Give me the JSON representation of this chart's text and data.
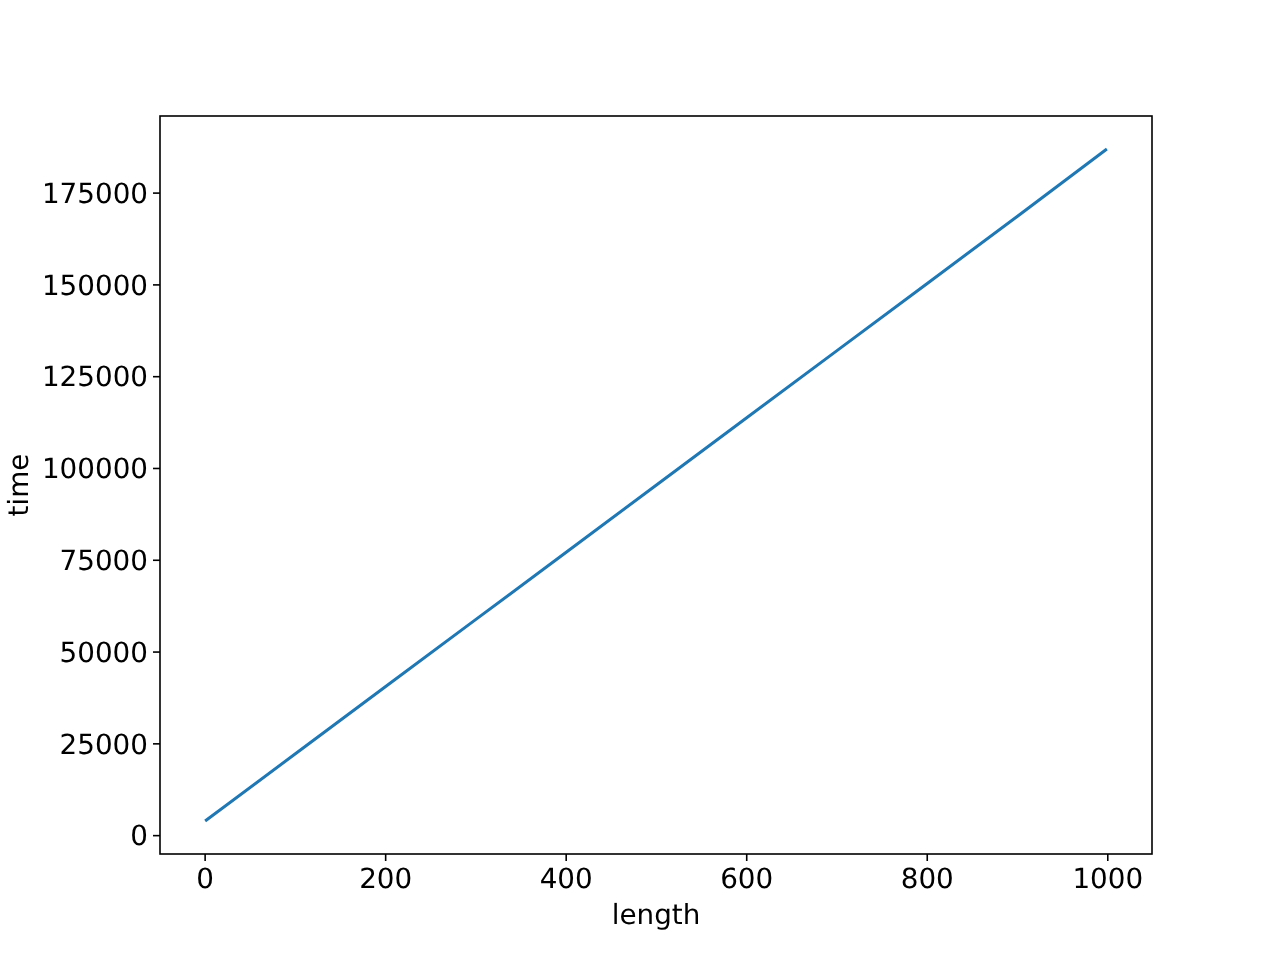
{
  "chart_data": {
    "type": "line",
    "xlabel": "length",
    "ylabel": "time",
    "x": [
      0,
      100,
      200,
      300,
      400,
      500,
      600,
      700,
      800,
      900,
      999
    ],
    "series": [
      {
        "color": "#1f77b4",
        "values": [
          4000,
          22300,
          40600,
          58900,
          77200,
          95500,
          113800,
          132100,
          150400,
          168700,
          187000
        ]
      }
    ],
    "xlim": [
      -50,
      1049
    ],
    "ylim": [
      -5000,
      196000
    ],
    "xticks": [
      0,
      200,
      400,
      600,
      800,
      1000
    ],
    "yticks": [
      0,
      25000,
      50000,
      75000,
      100000,
      125000,
      150000,
      175000
    ]
  }
}
